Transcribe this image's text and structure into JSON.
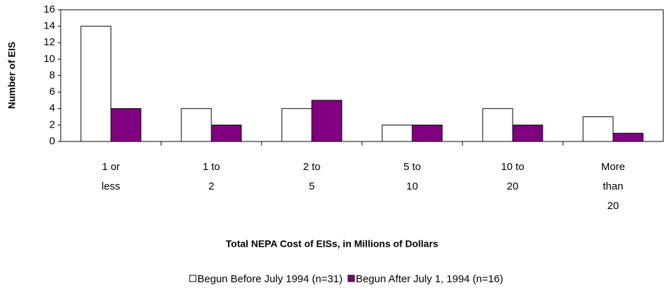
{
  "chart_data": {
    "type": "bar",
    "x_label": "Total NEPA Cost of EISs, in Millions of Dollars",
    "y_label": "Number of EIS",
    "categories": [
      [
        "1 or",
        "less"
      ],
      [
        "1 to",
        "2"
      ],
      [
        "2 to",
        "5"
      ],
      [
        "5 to",
        "10"
      ],
      [
        "10 to",
        "20"
      ],
      [
        "More",
        "than",
        "20"
      ]
    ],
    "series": [
      {
        "name": "Begun Before July 1994 (n=31)",
        "color": "#ffffff",
        "values": [
          14,
          4,
          4,
          2,
          4,
          3
        ]
      },
      {
        "name": "Begun After July 1, 1994 (n=16)",
        "color": "#800080",
        "values": [
          4,
          2,
          5,
          2,
          2,
          1
        ]
      }
    ],
    "ylim": [
      0,
      16
    ],
    "yticks": [
      0,
      2,
      4,
      6,
      8,
      10,
      12,
      14,
      16
    ],
    "legend": "bottom"
  }
}
